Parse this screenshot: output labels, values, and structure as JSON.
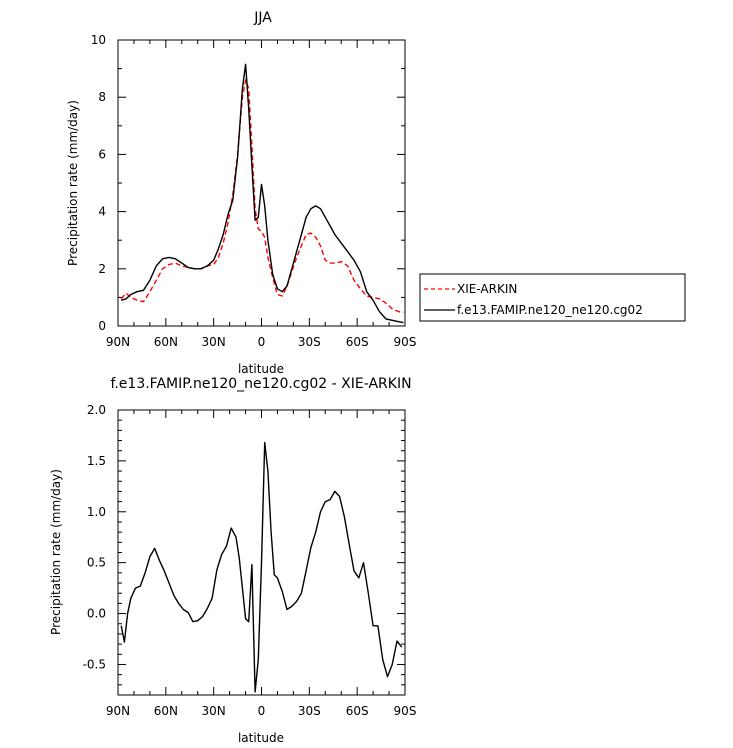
{
  "chart_data": [
    {
      "type": "line",
      "title": "JJA",
      "xlabel": "latitude",
      "ylabel": "Precipitation rate (mm/day)",
      "xlim": [
        -90,
        90
      ],
      "ylim": [
        0,
        10
      ],
      "xticks": [
        -90,
        -60,
        -30,
        0,
        30,
        60,
        90
      ],
      "xtick_labels": [
        "90N",
        "60N",
        "30N",
        "0",
        "30S",
        "60S",
        "90S"
      ],
      "yticks": [
        0,
        2,
        4,
        6,
        8,
        10
      ],
      "ytick_labels": [
        "0",
        "2",
        "4",
        "6",
        "8",
        "10"
      ],
      "legend": "right",
      "series": [
        {
          "name": "XIE-ARKIN",
          "color": "#ff0000",
          "dash": true,
          "x": [
            -88,
            -85,
            -82,
            -78,
            -74,
            -70,
            -66,
            -62,
            -58,
            -54,
            -50,
            -46,
            -42,
            -38,
            -34,
            -30,
            -27,
            -24,
            -21,
            -18,
            -15,
            -12,
            -10,
            -8,
            -6,
            -4,
            -2,
            0,
            2,
            4,
            7,
            10,
            13,
            16,
            19,
            22,
            25,
            28,
            31,
            34,
            37,
            40,
            43,
            46,
            50,
            54,
            58,
            62,
            66,
            70,
            74,
            78,
            82,
            86,
            89
          ],
          "y": [
            0.95,
            1.15,
            1.0,
            0.9,
            0.85,
            1.2,
            1.6,
            2.0,
            2.15,
            2.2,
            2.1,
            2.05,
            2.0,
            2.0,
            2.1,
            2.15,
            2.4,
            2.9,
            3.6,
            4.6,
            6.0,
            8.0,
            8.6,
            8.3,
            6.3,
            4.1,
            3.4,
            3.3,
            3.1,
            2.4,
            1.7,
            1.1,
            1.05,
            1.4,
            1.9,
            2.4,
            2.8,
            3.2,
            3.25,
            3.1,
            2.8,
            2.3,
            2.2,
            2.2,
            2.25,
            2.1,
            1.6,
            1.3,
            1.05,
            1.0,
            0.95,
            0.8,
            0.6,
            0.5,
            0.48
          ]
        },
        {
          "name": "f.e13.FAMIP.ne120_ne120.cg02",
          "color": "#000000",
          "dash": false,
          "x": [
            -88,
            -85,
            -82,
            -78,
            -74,
            -70,
            -66,
            -62,
            -58,
            -54,
            -50,
            -46,
            -42,
            -38,
            -34,
            -30,
            -27,
            -24,
            -21,
            -18,
            -15,
            -12,
            -10,
            -8,
            -6,
            -4,
            -2,
            0,
            2,
            4,
            7,
            10,
            13,
            16,
            19,
            22,
            25,
            28,
            31,
            34,
            37,
            40,
            43,
            46,
            50,
            54,
            58,
            62,
            66,
            70,
            74,
            78,
            82,
            86,
            89
          ],
          "y": [
            0.9,
            0.95,
            1.1,
            1.2,
            1.25,
            1.6,
            2.1,
            2.35,
            2.4,
            2.35,
            2.2,
            2.05,
            2.0,
            2.0,
            2.1,
            2.3,
            2.7,
            3.2,
            3.9,
            4.4,
            5.9,
            8.3,
            9.15,
            7.6,
            5.6,
            3.7,
            3.8,
            4.95,
            4.2,
            3.0,
            1.8,
            1.3,
            1.2,
            1.4,
            2.0,
            2.6,
            3.2,
            3.8,
            4.1,
            4.2,
            4.1,
            3.8,
            3.5,
            3.2,
            2.9,
            2.6,
            2.3,
            1.9,
            1.2,
            0.9,
            0.5,
            0.25,
            0.2,
            0.15,
            0.12
          ]
        }
      ]
    },
    {
      "type": "line",
      "title": "f.e13.FAMIP.ne120_ne120.cg02 - XIE-ARKIN",
      "xlabel": "latitude",
      "ylabel": "Precipitation rate (mm/day)",
      "xlim": [
        -90,
        90
      ],
      "ylim": [
        -0.8,
        2.0
      ],
      "xticks": [
        -90,
        -60,
        -30,
        0,
        30,
        60,
        90
      ],
      "xtick_labels": [
        "90N",
        "60N",
        "30N",
        "0",
        "30S",
        "60S",
        "90S"
      ],
      "yticks": [
        -0.5,
        0.0,
        0.5,
        1.0,
        1.5,
        2.0
      ],
      "ytick_labels": [
        "-0.5",
        "0.0",
        "0.5",
        "1.0",
        "1.5",
        "2.0"
      ],
      "series": [
        {
          "color": "#000000",
          "dash": false,
          "x": [
            -88,
            -86,
            -84,
            -82,
            -79,
            -76,
            -73,
            -70,
            -67,
            -64,
            -61,
            -58,
            -55,
            -52,
            -49,
            -46,
            -43,
            -40,
            -37,
            -34,
            -31,
            -28,
            -25,
            -22,
            -19,
            -16,
            -14,
            -12,
            -10,
            -8,
            -6,
            -4,
            -2,
            0,
            2,
            4,
            6,
            8,
            10,
            13,
            16,
            19,
            22,
            25,
            28,
            31,
            34,
            37,
            40,
            43,
            46,
            49,
            52,
            55,
            58,
            61,
            64,
            67,
            70,
            73,
            76,
            79,
            82,
            85,
            88
          ],
          "y": [
            -0.12,
            -0.28,
            0.0,
            0.15,
            0.25,
            0.27,
            0.4,
            0.56,
            0.64,
            0.52,
            0.42,
            0.3,
            0.18,
            0.1,
            0.04,
            0.01,
            -0.08,
            -0.07,
            -0.03,
            0.05,
            0.15,
            0.43,
            0.58,
            0.66,
            0.84,
            0.75,
            0.55,
            0.25,
            -0.05,
            -0.08,
            0.48,
            -0.77,
            -0.45,
            0.5,
            1.68,
            1.4,
            0.8,
            0.38,
            0.35,
            0.22,
            0.04,
            0.07,
            0.12,
            0.2,
            0.42,
            0.65,
            0.8,
            1.0,
            1.1,
            1.12,
            1.2,
            1.15,
            0.95,
            0.68,
            0.42,
            0.35,
            0.5,
            0.2,
            -0.12,
            -0.12,
            -0.45,
            -0.62,
            -0.5,
            -0.27,
            -0.33
          ]
        }
      ]
    }
  ]
}
